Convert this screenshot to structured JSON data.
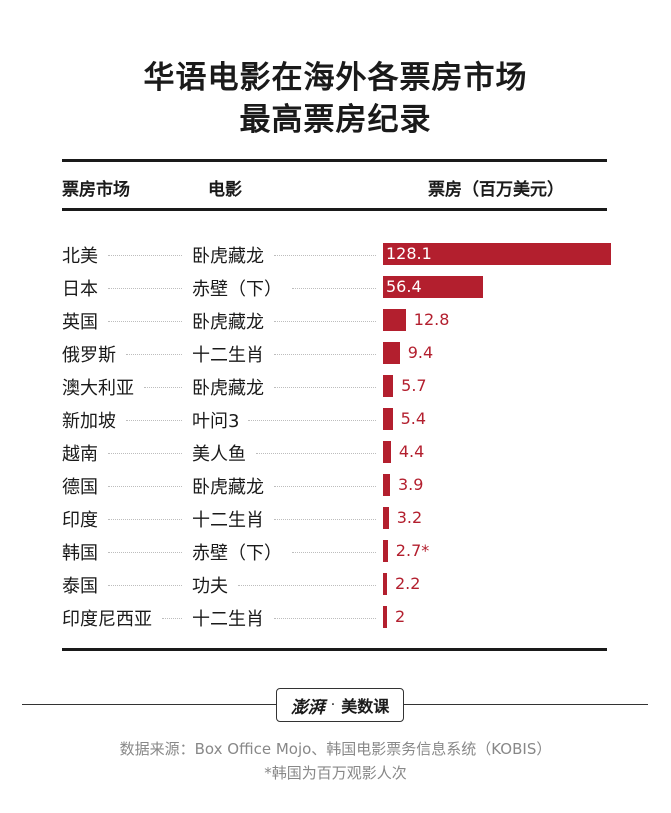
{
  "title_line1": "华语电影在海外各票房市场",
  "title_line2": "最高票房纪录",
  "headers": {
    "market": "票房市场",
    "movie": "电影",
    "value": "票房（百万美元）"
  },
  "chart_data": {
    "type": "bar",
    "title": "华语电影在海外各票房市场 最高票房纪录",
    "ylabel": "票房（百万美元）",
    "categories": [
      "北美",
      "日本",
      "英国",
      "俄罗斯",
      "澳大利亚",
      "新加坡",
      "越南",
      "德国",
      "印度",
      "韩国",
      "泰国",
      "印度尼西亚"
    ],
    "movies": [
      "卧虎藏龙",
      "赤壁（下）",
      "卧虎藏龙",
      "十二生肖",
      "卧虎藏龙",
      "叶问3",
      "美人鱼",
      "卧虎藏龙",
      "十二生肖",
      "赤壁（下）",
      "功夫",
      "十二生肖"
    ],
    "values": [
      128.1,
      56.4,
      12.8,
      9.4,
      5.7,
      5.4,
      4.4,
      3.9,
      3.2,
      2.7,
      2.2,
      2
    ],
    "value_labels": [
      "128.1",
      "56.4",
      "12.8",
      "9.4",
      "5.7",
      "5.4",
      "4.4",
      "3.9",
      "3.2",
      "2.7*",
      "2.2",
      "2"
    ],
    "bar_color": "#b31f2e",
    "orientation": "horizontal"
  },
  "logo": {
    "brand": "澎湃",
    "separator": "·",
    "text": "美数课"
  },
  "source": "数据来源：Box Office Mojo、韩国电影票务信息系统（KOBIS）",
  "note": "*韩国为百万观影人次"
}
